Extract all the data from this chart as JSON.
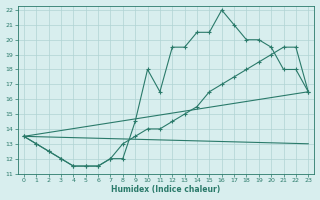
{
  "line1_x": [
    0,
    1,
    2,
    3,
    4,
    5,
    6,
    7,
    8,
    9,
    10,
    11,
    12,
    13,
    14,
    15,
    16,
    17,
    18,
    19,
    20,
    21,
    22,
    23
  ],
  "line1_y": [
    13.5,
    13.0,
    12.5,
    12.0,
    11.5,
    11.5,
    11.5,
    12.0,
    12.0,
    14.5,
    18.0,
    16.5,
    19.5,
    19.5,
    20.5,
    20.5,
    22.0,
    21.0,
    20.0,
    20.0,
    19.5,
    18.0,
    18.0,
    16.5
  ],
  "line2_x": [
    0,
    1,
    2,
    3,
    4,
    5,
    6,
    7,
    8,
    9,
    10,
    11,
    12,
    13,
    14,
    15,
    16,
    17,
    18,
    19,
    20,
    21,
    22,
    23
  ],
  "line2_y": [
    13.5,
    13.0,
    12.5,
    12.0,
    11.5,
    11.5,
    11.5,
    12.0,
    13.0,
    13.5,
    14.0,
    14.0,
    14.5,
    15.0,
    15.5,
    16.5,
    17.0,
    17.5,
    18.0,
    18.5,
    19.0,
    19.5,
    19.5,
    16.5
  ],
  "line3_x": [
    0,
    23
  ],
  "line3_y": [
    13.5,
    16.5
  ],
  "line4_x": [
    0,
    23
  ],
  "line4_y": [
    13.5,
    13.0
  ],
  "color": "#2a7a6a",
  "bg_color": "#d8eeee",
  "grid_color": "#b0d4d4",
  "xlabel": "Humidex (Indice chaleur)",
  "ylim": [
    11,
    22
  ],
  "xlim": [
    -0.5,
    23.5
  ],
  "yticks": [
    11,
    12,
    13,
    14,
    15,
    16,
    17,
    18,
    19,
    20,
    21,
    22
  ],
  "xticks": [
    0,
    1,
    2,
    3,
    4,
    5,
    6,
    7,
    8,
    9,
    10,
    11,
    12,
    13,
    14,
    15,
    16,
    17,
    18,
    19,
    20,
    21,
    22,
    23
  ]
}
